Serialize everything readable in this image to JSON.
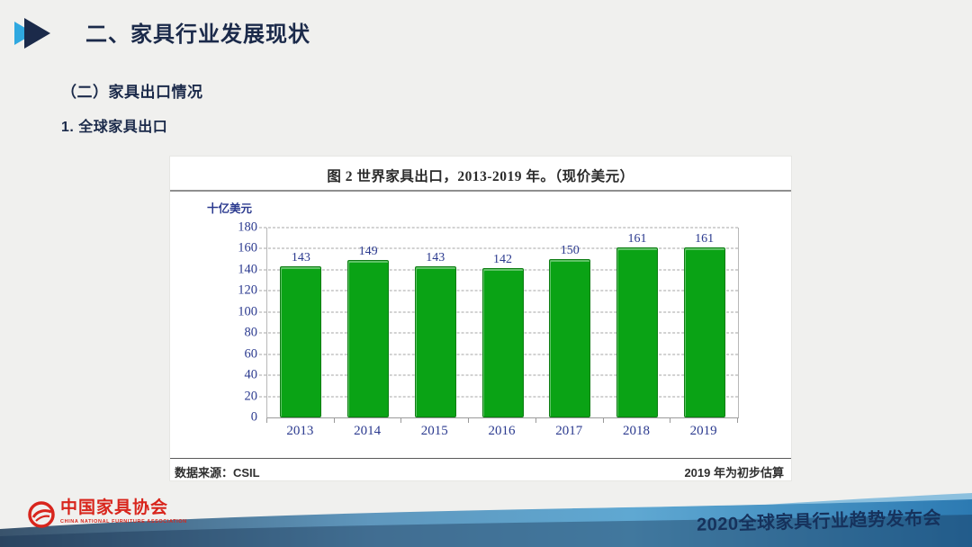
{
  "header": {
    "title": "二、家具行业发展现状",
    "subtitle": "（二）家具出口情况",
    "sub_subtitle": "1. 全球家具出口"
  },
  "chart_data": {
    "type": "bar",
    "title": "图 2 世界家具出口，2013-2019 年。（现价美元）",
    "unit_label": "十亿美元",
    "categories": [
      "2013",
      "2014",
      "2015",
      "2016",
      "2017",
      "2018",
      "2019"
    ],
    "values": [
      143,
      149,
      143,
      142,
      150,
      161,
      161
    ],
    "ylim": [
      0,
      180
    ],
    "ytick_step": 20,
    "grid": "horizontal-dashed",
    "legend": "none",
    "bar_color": "#0aa315",
    "bar_border_color": "#0c7c12",
    "axis_text_color": "#2b3a8f",
    "source_note": "数据来源：CSIL",
    "footnote": "2019 年为初步估算"
  },
  "footer": {
    "logo_name": "中国家具协会",
    "logo_subtext": "CHINA NATIONAL FURNITURE ASSOCIATION",
    "conference_title": "2020全球家具行业趋势发布会",
    "logo_color": "#d8251c"
  },
  "accents": {
    "heading_color": "#1b2a4a",
    "arrow_light_color": "#2fa8e0",
    "arrow_dark_color": "#1b2a4a",
    "wave_colors": [
      "#39536c",
      "#5f97bd",
      "#5fa8d2",
      "#2c7ab2"
    ]
  }
}
